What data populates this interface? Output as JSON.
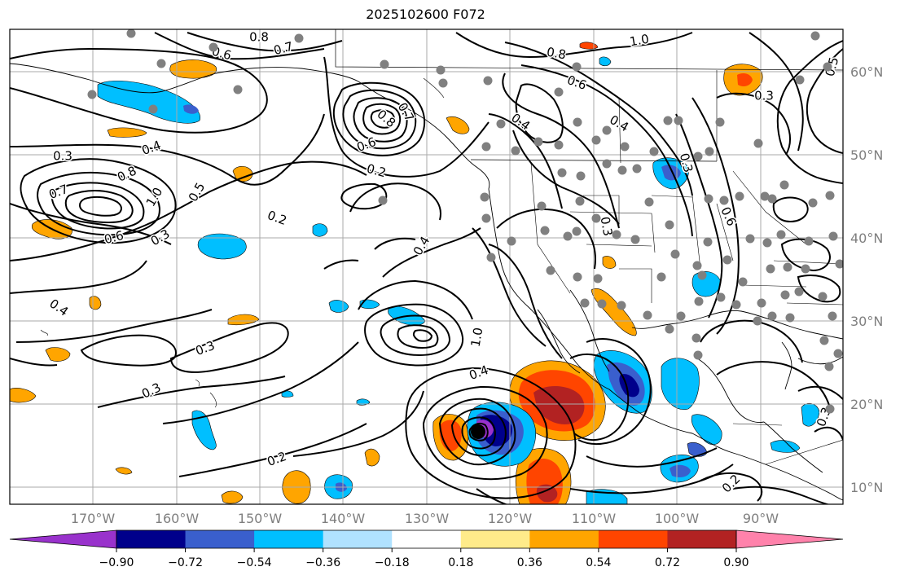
{
  "title": "2025102600 F072",
  "map": {
    "lon_labels": [
      "170°W",
      "160°W",
      "150°W",
      "140°W",
      "130°W",
      "120°W",
      "110°W",
      "100°W",
      "90°W"
    ],
    "lat_labels": [
      "60°N",
      "50°N",
      "40°N",
      "30°N",
      "20°N",
      "10°N"
    ],
    "contour_labels": [
      "0.8",
      "0.7",
      "0.6",
      "1.0",
      "0.8",
      "0.6",
      "0.7",
      "0.8",
      "0.5",
      "0.3",
      "0.4",
      "0.8",
      "0.7",
      "1.0",
      "0.5",
      "0.6",
      "0.3",
      "0.2",
      "0.2",
      "0.6",
      "0.4",
      "0.3",
      "0.4",
      "0.4",
      "0.3",
      "0.3",
      "1.0",
      "0.4",
      "0.2",
      "0.3",
      "0.2",
      "0.3",
      "0.6",
      "0.3",
      "0.4"
    ],
    "colors": {
      "coast": "#000000",
      "grid": "#aaaaaa",
      "dots": "#808080"
    }
  },
  "colorbar": {
    "tick_labels": [
      "−0.90",
      "−0.72",
      "−0.54",
      "−0.36",
      "−0.18",
      "0.18",
      "0.36",
      "0.54",
      "0.72",
      "0.90"
    ],
    "colors": [
      "#9932cc",
      "#00008b",
      "#3a5fcd",
      "#00bfff",
      "#b0e2ff",
      "#ffffff",
      "#ffeb8a",
      "#ffa500",
      "#ff4500",
      "#b22222",
      "#ff82ab"
    ]
  }
}
